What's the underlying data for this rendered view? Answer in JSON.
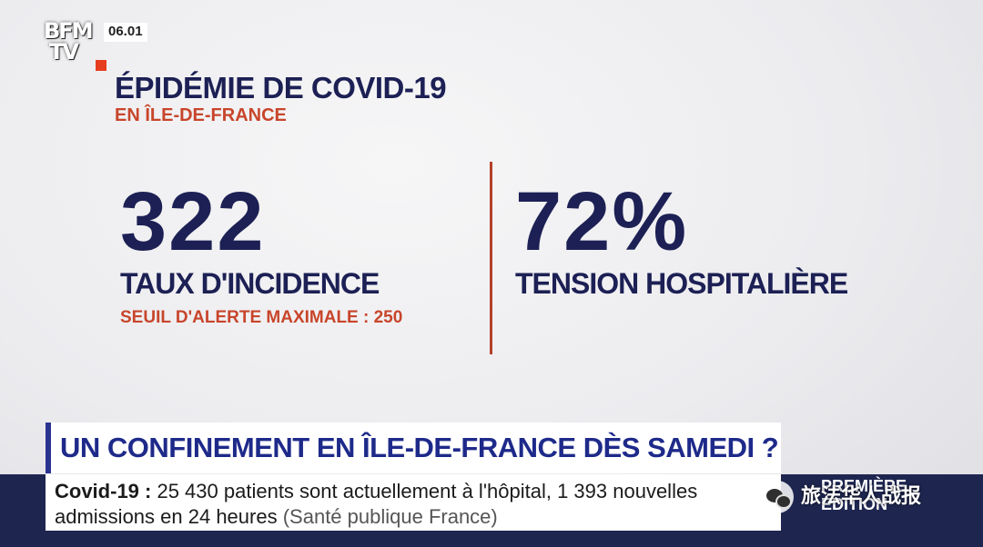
{
  "branding": {
    "logo_line1": "BFM",
    "logo_line2": "TV",
    "clock": "06.01",
    "show_line1": "PREMIÈRE",
    "show_line2": "ÉDITION"
  },
  "header": {
    "title": "ÉPIDÉMIE DE COVID-19",
    "subtitle": "EN ÎLE-DE-FRANCE"
  },
  "stats": [
    {
      "value": "322",
      "label": "TAUX D'INCIDENCE",
      "note": "SEUIL D'ALERTE MAXIMALE : 250"
    },
    {
      "value": "72%",
      "label": "TENSION HOSPITALIÈRE"
    }
  ],
  "banner": {
    "headline": "UN CONFINEMENT EN ÎLE-DE-FRANCE DÈS SAMEDI ?"
  },
  "ticker": {
    "lead": "Covid-19 :",
    "text1": " 25 430 patients sont actuellement à l'hôpital, 1 393 nouvelles",
    "text2": "admissions en 24 heures",
    "source": "(Santé publique France)"
  },
  "overlay": {
    "wechat_label": "旅法华人战报"
  },
  "colors": {
    "navy": "#1c2054",
    "accent_red": "#c8452b",
    "banner_blue": "#1e2a8a",
    "ticker_bg": "#1e2650"
  },
  "icons": [
    "bfmtv-logo",
    "wechat-icon"
  ]
}
